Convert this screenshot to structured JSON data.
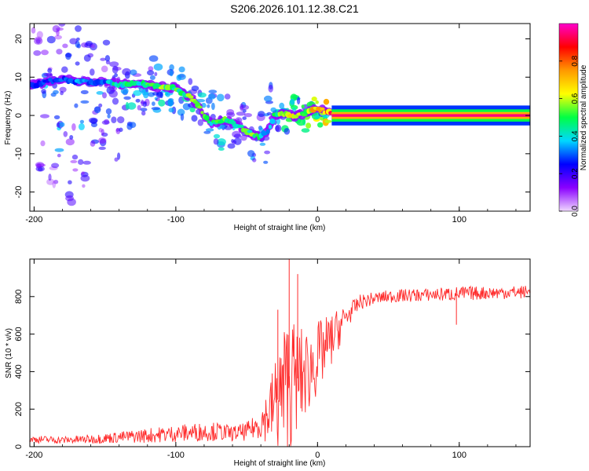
{
  "chart_data": [
    {
      "type": "heatmap",
      "title": "S206.2026.101.12.38.C21",
      "xlabel": "Height of straight line (km)",
      "ylabel": "Frequency (Hz)",
      "xlim": [
        -203,
        150
      ],
      "ylim": [
        -25,
        24
      ],
      "xticks": [
        -200,
        -100,
        0,
        100
      ],
      "yticks": [
        -20,
        -10,
        0,
        10,
        20
      ],
      "colorbar": {
        "label": "Normalized spectral amplitude",
        "range": [
          0,
          1
        ],
        "ticks": [
          0.0,
          0.2,
          0.4,
          0.6,
          0.8
        ],
        "colors": [
          "#f0d8ff",
          "#8a00ff",
          "#0000ff",
          "#00d8ff",
          "#00ff44",
          "#ffff00",
          "#ff9900",
          "#ff0000",
          "#ff00cc"
        ]
      },
      "ridge": {
        "name": "dominant frequency track",
        "x": [
          -200,
          -190,
          -180,
          -170,
          -160,
          -150,
          -140,
          -130,
          -120,
          -110,
          -100,
          -95,
          -90,
          -85,
          -80,
          -75,
          -70,
          -65,
          -60,
          -55,
          -50,
          -45,
          -40,
          -35,
          -30,
          -25,
          -20,
          -15,
          -10,
          -5,
          0,
          5,
          10,
          20,
          40,
          60,
          80,
          100,
          120,
          150
        ],
        "y": [
          8,
          9,
          9.5,
          9,
          8.5,
          9,
          8,
          8.5,
          8,
          7.5,
          7,
          6,
          5,
          3,
          0,
          -2,
          -1.5,
          -1,
          -2,
          -3,
          -4,
          -5,
          -5.5,
          -4,
          0,
          0.5,
          0,
          0,
          0.5,
          1,
          2,
          1,
          0.5,
          0,
          0,
          0,
          0,
          0,
          0,
          0
        ],
        "amp": [
          0.25,
          0.3,
          0.3,
          0.35,
          0.35,
          0.35,
          0.45,
          0.45,
          0.5,
          0.55,
          0.5,
          0.55,
          0.55,
          0.5,
          0.5,
          0.45,
          0.5,
          0.5,
          0.45,
          0.5,
          0.55,
          0.5,
          0.45,
          0.3,
          0.55,
          0.6,
          0.6,
          0.6,
          0.6,
          0.65,
          0.7,
          0.75,
          0.9,
          0.95,
          0.95,
          0.95,
          0.95,
          0.95,
          0.95,
          0.95
        ]
      },
      "noise_blobs": {
        "x": [
          -198,
          -195,
          -192,
          -190,
          -187,
          -185,
          -182,
          -180,
          -178,
          -176,
          -173,
          -170,
          -168,
          -165,
          -162,
          -160,
          -157,
          -155,
          -152,
          -150,
          -148,
          -145,
          -142,
          -140,
          -136,
          -132,
          -128,
          -125,
          -122,
          -118,
          -115,
          -112,
          -108,
          -105,
          -102,
          -98,
          -94,
          -90,
          -86,
          -82,
          -78,
          -74,
          -70,
          -66,
          -62,
          -58,
          -54,
          -50,
          -46,
          -42,
          -38,
          -34,
          -30,
          -26,
          -22,
          -18,
          -14,
          -10,
          -6,
          -2,
          2,
          6
        ],
        "y": [
          18,
          -12,
          5,
          15,
          -18,
          2,
          20,
          -5,
          12,
          -22,
          -8,
          17,
          3,
          -15,
          11,
          14,
          -3,
          6,
          -10,
          13,
          1,
          4,
          10,
          -6,
          7,
          2,
          9,
          5,
          3,
          11,
          6,
          8,
          4,
          9,
          6,
          8,
          4,
          5,
          3,
          1,
          -1,
          2,
          -4,
          0,
          -3,
          -6,
          -1,
          -2,
          -7,
          -3,
          -8,
          3,
          -2,
          1,
          -1,
          2,
          1,
          -1,
          0,
          2,
          1,
          0
        ],
        "amp": [
          0.15,
          0.2,
          0.3,
          0.2,
          0.15,
          0.25,
          0.15,
          0.3,
          0.25,
          0.2,
          0.2,
          0.25,
          0.3,
          0.2,
          0.25,
          0.2,
          0.25,
          0.3,
          0.2,
          0.2,
          0.3,
          0.3,
          0.25,
          0.2,
          0.3,
          0.35,
          0.3,
          0.3,
          0.3,
          0.25,
          0.3,
          0.3,
          0.35,
          0.3,
          0.3,
          0.3,
          0.35,
          0.35,
          0.3,
          0.35,
          0.3,
          0.3,
          0.35,
          0.3,
          0.3,
          0.3,
          0.25,
          0.3,
          0.3,
          0.25,
          0.3,
          0.25,
          0.35,
          0.35,
          0.4,
          0.4,
          0.45,
          0.45,
          0.45,
          0.5,
          0.5,
          0.6
        ],
        "spread": [
          2,
          2.5,
          3,
          2.5,
          2,
          3,
          2,
          3,
          2.5,
          2,
          2.5,
          2.5,
          3,
          2.5,
          3,
          2.5,
          3,
          3,
          2.5,
          2.5,
          2.5,
          2.5,
          2,
          2.5,
          2,
          2,
          2,
          2,
          2,
          2,
          2,
          2,
          2,
          2,
          2,
          2,
          2,
          2,
          2,
          2,
          2,
          2,
          2,
          2,
          2,
          2,
          2,
          2,
          2,
          2,
          2,
          2,
          2,
          2,
          1.5,
          1.5,
          1.5,
          1.5,
          1.5,
          1.5,
          1.5,
          1.5
        ]
      }
    },
    {
      "type": "line",
      "xlabel": "Height of straight line (km)",
      "ylabel": "SNR (10 * v/v)",
      "xlim": [
        -203,
        150
      ],
      "ylim": [
        0,
        1000
      ],
      "xticks": [
        -200,
        -100,
        0,
        100
      ],
      "yticks": [
        0,
        200,
        400,
        600,
        800
      ],
      "color": "#ff2a2a",
      "envelope": {
        "x": [
          -203,
          -180,
          -160,
          -140,
          -120,
          -100,
          -90,
          -80,
          -70,
          -60,
          -50,
          -45,
          -40,
          -35,
          -30,
          -25,
          -20,
          -15,
          -10,
          -5,
          0,
          5,
          10,
          15,
          20,
          25,
          30,
          40,
          50,
          60,
          80,
          100,
          120,
          150
        ],
        "mean": [
          40,
          35,
          40,
          50,
          60,
          70,
          75,
          80,
          80,
          70,
          80,
          100,
          130,
          170,
          230,
          280,
          330,
          360,
          380,
          420,
          470,
          520,
          570,
          630,
          690,
          730,
          770,
          790,
          800,
          805,
          810,
          815,
          820,
          825
        ],
        "noise": [
          20,
          20,
          25,
          30,
          40,
          45,
          50,
          50,
          50,
          40,
          50,
          60,
          90,
          150,
          250,
          350,
          400,
          300,
          250,
          220,
          200,
          170,
          140,
          110,
          70,
          50,
          40,
          35,
          35,
          35,
          35,
          40,
          35,
          35
        ]
      },
      "spikes": [
        {
          "x": -20,
          "y": 1000
        },
        {
          "x": -28,
          "y": 730
        },
        {
          "x": -14,
          "y": 920
        },
        {
          "x": 100,
          "y": 800
        },
        {
          "x": 98,
          "y": 650
        }
      ]
    }
  ]
}
